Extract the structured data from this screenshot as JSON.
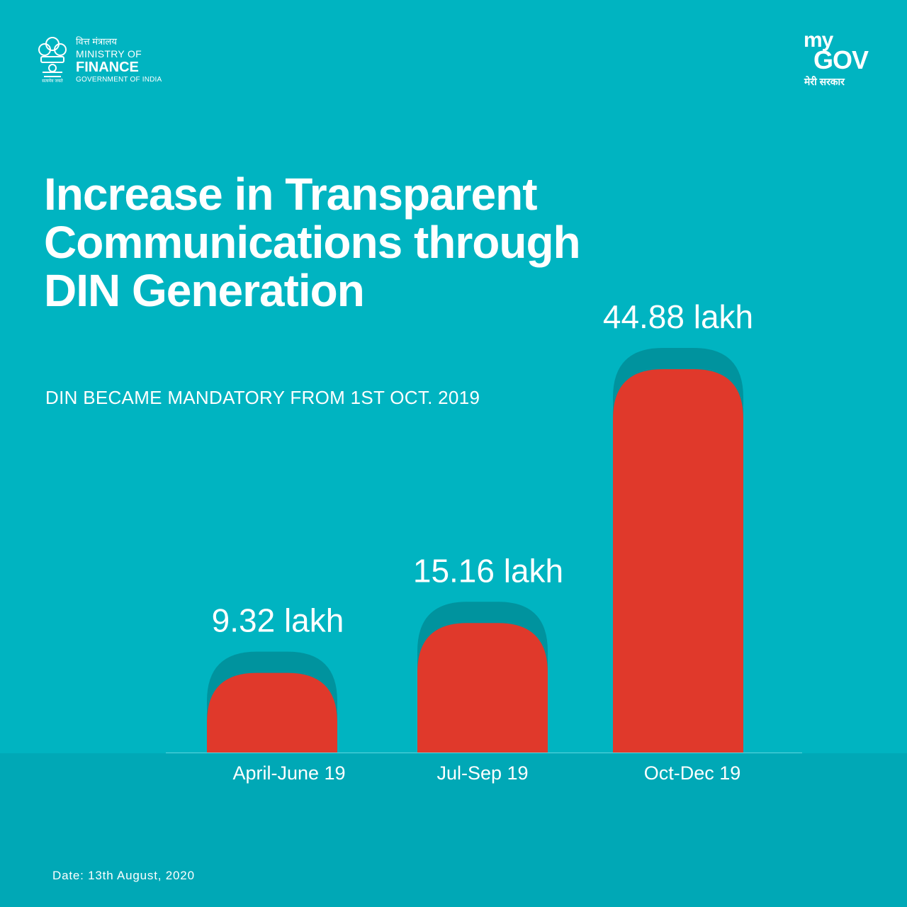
{
  "branding": {
    "ministry_hindi": "वित्त मंत्रालय",
    "ministry_line1": "MINISTRY OF",
    "ministry_line2": "FINANCE",
    "ministry_line3": "GOVERNMENT OF INDIA",
    "mygov_my": "my",
    "mygov_gov": "GOV",
    "mygov_hindi": "मेरी सरकार"
  },
  "colors": {
    "background": "#00b4c1",
    "bar": "#e0392b",
    "bar_shadow": "#00939e",
    "band": "#00a8b6"
  },
  "chart_data": {
    "type": "bar",
    "title": "Increase in Transparent Communications through DIN Generation",
    "subtitle": "DIN BECAME MANDATORY FROM 1ST OCT. 2019",
    "categories": [
      "April-June 19",
      "Jul-Sep 19",
      "Oct-Dec 19"
    ],
    "values": [
      9.32,
      15.16,
      44.88
    ],
    "data_labels": [
      "9.32 lakh",
      "15.16 lakh",
      "44.88 lakh"
    ],
    "unit": "lakh",
    "xlabel": "",
    "ylabel": "",
    "grid": false,
    "legend": "none"
  },
  "footer": {
    "date": "Date: 13th August, 2020"
  }
}
